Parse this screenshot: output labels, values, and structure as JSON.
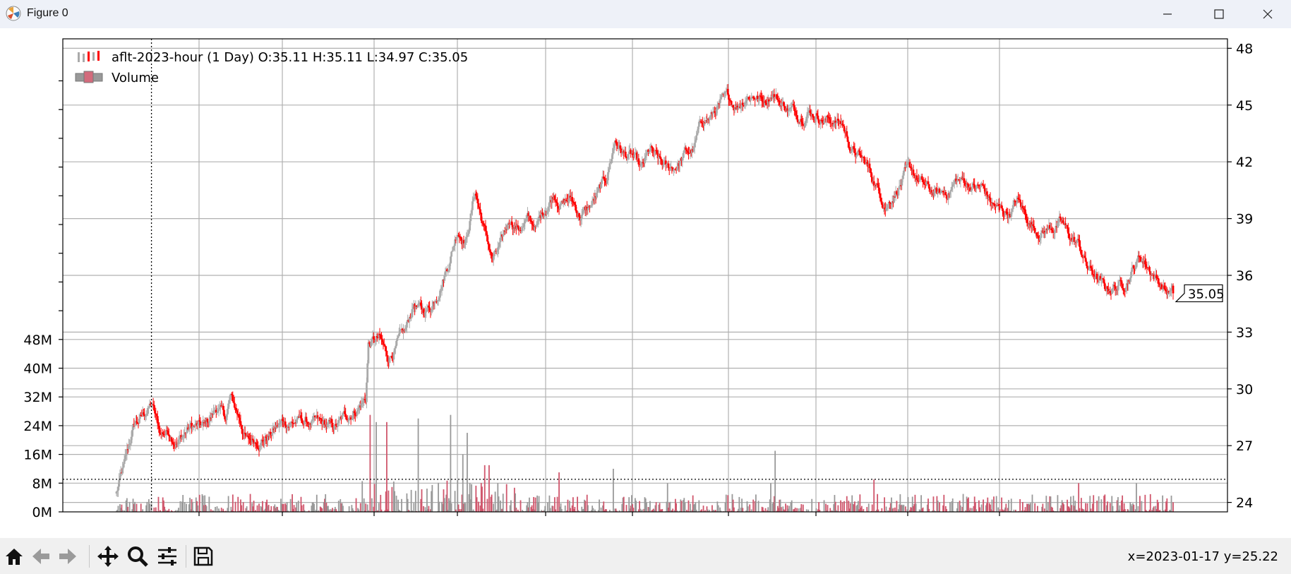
{
  "window": {
    "title": "Figure 0",
    "icon": "matplotlib-icon",
    "minimize_icon": "minimize-icon",
    "maximize_icon": "maximize-icon",
    "close_icon": "close-icon"
  },
  "toolbar": {
    "buttons": [
      "home-icon",
      "back-icon",
      "forward-icon",
      "pan-icon",
      "zoom-icon",
      "configure-subplots-icon",
      "save-icon"
    ],
    "coordinates": "x=2023-01-17 y=25.22"
  },
  "chart_data": {
    "type": "candlestick",
    "legend": {
      "placement": "top-left",
      "entries": [
        "aflt-2023-hour (1 Day) O:35.11 H:35.11 L:34.97 C:35.05",
        "Volume"
      ]
    },
    "price_axis": {
      "side": "right",
      "ylim": [
        23.5,
        48.5
      ],
      "ticks": [
        "24",
        "27",
        "30",
        "33",
        "36",
        "39",
        "42",
        "45",
        "48"
      ]
    },
    "volume_axis": {
      "side": "left",
      "ylim": [
        0,
        48
      ],
      "ticks": [
        "0M",
        "8M",
        "16M",
        "24M",
        "32M",
        "40M",
        "48M"
      ]
    },
    "grid": true,
    "last_price_label": "35.05",
    "crosshair": {
      "x_index": 40,
      "price": 25.22
    },
    "price_series": [
      [
        0,
        24.5
      ],
      [
        10,
        26.0
      ],
      [
        20,
        28.0
      ],
      [
        30,
        28.5
      ],
      [
        40,
        29.2
      ],
      [
        50,
        27.6
      ],
      [
        60,
        27.8
      ],
      [
        70,
        27.3
      ],
      [
        85,
        28.0
      ],
      [
        100,
        27.9
      ],
      [
        115,
        29.0
      ],
      [
        125,
        28.4
      ],
      [
        130,
        29.5
      ],
      [
        140,
        28.5
      ],
      [
        150,
        27.2
      ],
      [
        160,
        27.3
      ],
      [
        175,
        27.6
      ],
      [
        190,
        28.2
      ],
      [
        205,
        28.3
      ],
      [
        220,
        28.2
      ],
      [
        235,
        28.0
      ],
      [
        250,
        27.9
      ],
      [
        265,
        28.6
      ],
      [
        285,
        29.5
      ],
      [
        288,
        32.4
      ],
      [
        300,
        32.6
      ],
      [
        310,
        31.6
      ],
      [
        320,
        32.3
      ],
      [
        330,
        32.8
      ],
      [
        340,
        34.5
      ],
      [
        350,
        34.0
      ],
      [
        360,
        34.4
      ],
      [
        370,
        35.6
      ],
      [
        380,
        36.8
      ],
      [
        390,
        38.5
      ],
      [
        400,
        38.0
      ],
      [
        410,
        40.5
      ],
      [
        420,
        38.5
      ],
      [
        430,
        36.8
      ],
      [
        440,
        37.5
      ],
      [
        450,
        39.0
      ],
      [
        460,
        38.5
      ],
      [
        470,
        38.9
      ],
      [
        480,
        38.5
      ],
      [
        490,
        39.5
      ],
      [
        500,
        40.4
      ],
      [
        510,
        39.9
      ],
      [
        520,
        40.0
      ],
      [
        530,
        39.2
      ],
      [
        540,
        39.5
      ],
      [
        550,
        40.2
      ],
      [
        560,
        41.0
      ],
      [
        570,
        43.2
      ],
      [
        580,
        42.4
      ],
      [
        590,
        42.2
      ],
      [
        600,
        41.4
      ],
      [
        610,
        42.5
      ],
      [
        620,
        41.9
      ],
      [
        630,
        41.5
      ],
      [
        640,
        41.8
      ],
      [
        650,
        42.4
      ],
      [
        660,
        42.6
      ],
      [
        670,
        44.2
      ],
      [
        680,
        44.4
      ],
      [
        690,
        45.0
      ],
      [
        700,
        45.2
      ],
      [
        710,
        45.0
      ],
      [
        720,
        45.6
      ],
      [
        730,
        45.6
      ],
      [
        740,
        45.2
      ],
      [
        750,
        45.8
      ],
      [
        760,
        45.1
      ],
      [
        770,
        44.8
      ],
      [
        780,
        44.5
      ],
      [
        790,
        44.8
      ],
      [
        800,
        44.6
      ],
      [
        810,
        44.3
      ],
      [
        820,
        44.2
      ],
      [
        830,
        44.0
      ],
      [
        840,
        42.7
      ],
      [
        850,
        42.2
      ],
      [
        860,
        41.6
      ],
      [
        870,
        40.6
      ],
      [
        880,
        39.8
      ],
      [
        890,
        40.5
      ],
      [
        900,
        41.2
      ],
      [
        910,
        41.4
      ],
      [
        920,
        40.8
      ],
      [
        930,
        40.4
      ],
      [
        940,
        40.2
      ],
      [
        950,
        40.4
      ],
      [
        960,
        41.0
      ],
      [
        970,
        40.9
      ],
      [
        980,
        40.7
      ],
      [
        990,
        40.6
      ],
      [
        1000,
        39.8
      ],
      [
        1010,
        39.4
      ],
      [
        1020,
        39.3
      ],
      [
        1030,
        39.9
      ],
      [
        1040,
        39.1
      ],
      [
        1050,
        38.5
      ],
      [
        1060,
        38.4
      ],
      [
        1070,
        38.6
      ],
      [
        1080,
        38.7
      ],
      [
        1090,
        38.0
      ],
      [
        1100,
        37.6
      ],
      [
        1110,
        36.4
      ],
      [
        1120,
        35.9
      ],
      [
        1130,
        35.2
      ],
      [
        1140,
        35.4
      ],
      [
        1150,
        35.5
      ],
      [
        1160,
        36.3
      ],
      [
        1170,
        37.0
      ],
      [
        1180,
        36.5
      ],
      [
        1190,
        35.8
      ],
      [
        1200,
        35.2
      ],
      [
        1208,
        35.05
      ]
    ]
  }
}
